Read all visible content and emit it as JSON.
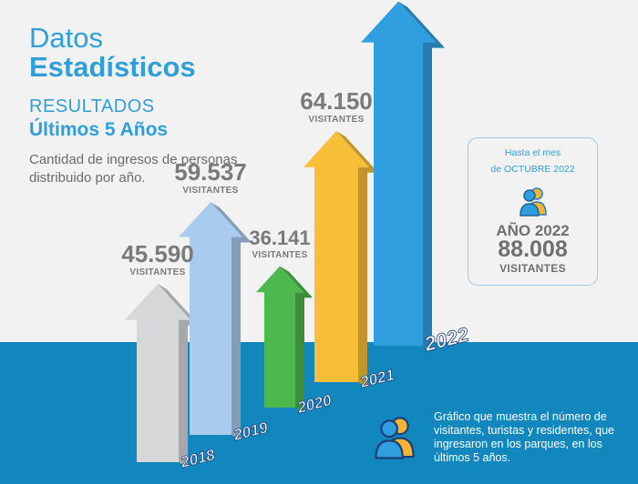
{
  "header": {
    "title_line1": "Datos",
    "title_line2": "Estadísticos",
    "subtitle_line1": "RESULTADOS",
    "subtitle_line2": "Últimos 5 Años",
    "description": "Cantidad de ingresos de personas distribuido por año."
  },
  "chart_data": {
    "type": "bar",
    "categories": [
      "2018",
      "2019",
      "2020",
      "2021",
      "2022"
    ],
    "values": [
      45590,
      59537,
      36141,
      64150,
      88008
    ],
    "value_labels": [
      "45.590",
      "59.537",
      "36.141",
      "64.150",
      "88.008"
    ],
    "unit_label": "VISITANTES",
    "colors": [
      "#d6d7d9",
      "#a9cbed",
      "#4db84d",
      "#f7bf38",
      "#2f9fe0"
    ]
  },
  "info_box": {
    "line1": "Hasta el mes",
    "line2": "de OCTUBRE 2022",
    "year_label": "AÑO 2022",
    "total": "88.008",
    "unit": "VISITANTES",
    "icon": "people-icon"
  },
  "note": {
    "text": "Gráfico que muestra el número de visitantes, turistas y residentes, que ingresaron en los parques, en los últimos 5 años.",
    "icon": "people-icon"
  },
  "colors": {
    "accent": "#2f9fd8",
    "band": "#1287be",
    "background": "#f2f2f3",
    "value_text": "#7a7a7a"
  }
}
